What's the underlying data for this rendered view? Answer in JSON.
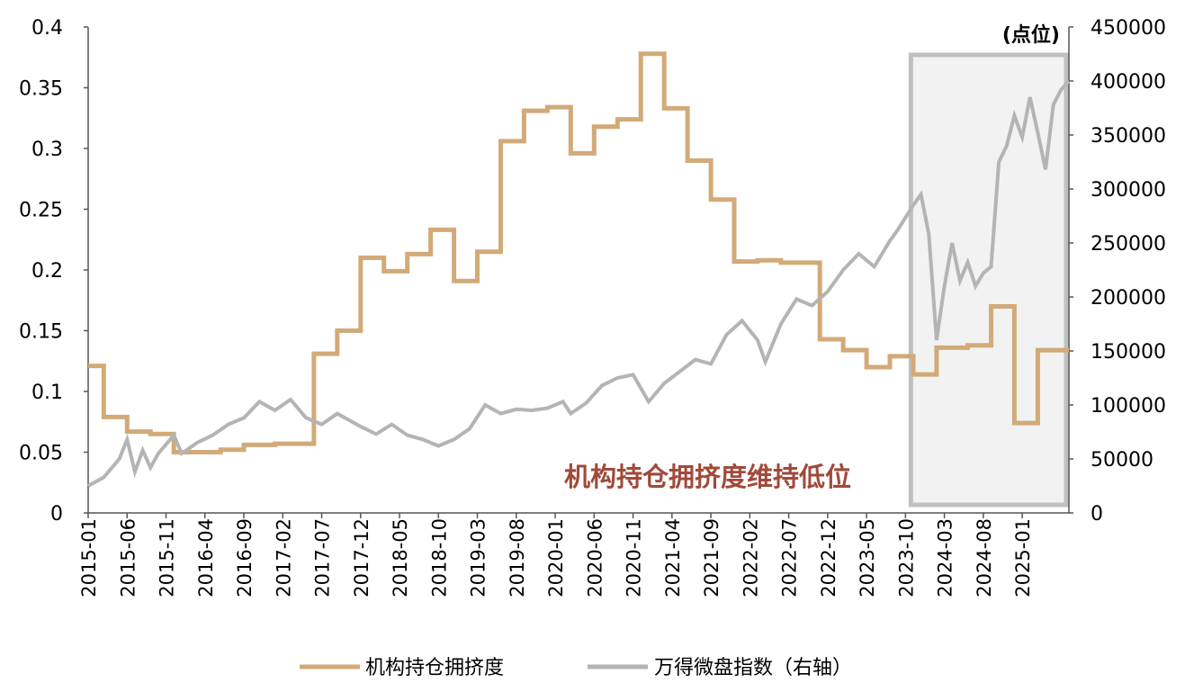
{
  "chart_data": {
    "type": "line",
    "y_left": {
      "ylim": [
        0,
        0.4
      ],
      "ticks": [
        "0",
        "0.05",
        "0.1",
        "0.15",
        "0.2",
        "0.25",
        "0.3",
        "0.35",
        "0.4"
      ]
    },
    "y_right": {
      "label": "(点位)",
      "ylim": [
        0,
        450000
      ],
      "ticks": [
        "0",
        "50000",
        "100000",
        "150000",
        "200000",
        "250000",
        "300000",
        "350000",
        "400000",
        "450000"
      ]
    },
    "x_range": [
      "2015-01",
      "2025-07"
    ],
    "x_ticks": [
      "2015-01",
      "2015-06",
      "2015-11",
      "2016-04",
      "2016-09",
      "2017-02",
      "2017-07",
      "2017-12",
      "2018-05",
      "2018-10",
      "2019-03",
      "2019-08",
      "2020-01",
      "2020-06",
      "2020-11",
      "2021-04",
      "2021-09",
      "2022-02",
      "2022-07",
      "2022-12",
      "2023-05",
      "2023-10",
      "2024-03",
      "2024-08",
      "2025-01"
    ],
    "annotation": "机构持仓拥挤度维持低位",
    "highlight": {
      "from": "2023-10",
      "to": "2025-07"
    },
    "legend_position": "bottom",
    "series": [
      {
        "name": "机构持仓拥挤度",
        "axis": "left",
        "color": "#d2aa78",
        "step": true,
        "points": [
          [
            "2015-01",
            0.121
          ],
          [
            "2015-03",
            0.079
          ],
          [
            "2015-06",
            0.067
          ],
          [
            "2015-09",
            0.065
          ],
          [
            "2015-12",
            0.05
          ],
          [
            "2016-06",
            0.052
          ],
          [
            "2016-09",
            0.056
          ],
          [
            "2017-01",
            0.057
          ],
          [
            "2017-06",
            0.131
          ],
          [
            "2017-09",
            0.15
          ],
          [
            "2017-12",
            0.21
          ],
          [
            "2018-03",
            0.199
          ],
          [
            "2018-06",
            0.213
          ],
          [
            "2018-09",
            0.233
          ],
          [
            "2018-12",
            0.191
          ],
          [
            "2019-03",
            0.215
          ],
          [
            "2019-06",
            0.306
          ],
          [
            "2019-09",
            0.331
          ],
          [
            "2019-12",
            0.334
          ],
          [
            "2020-03",
            0.296
          ],
          [
            "2020-06",
            0.318
          ],
          [
            "2020-09",
            0.324
          ],
          [
            "2020-12",
            0.378
          ],
          [
            "2021-03",
            0.333
          ],
          [
            "2021-06",
            0.29
          ],
          [
            "2021-09",
            0.258
          ],
          [
            "2021-12",
            0.207
          ],
          [
            "2022-03",
            0.208
          ],
          [
            "2022-06",
            0.206
          ],
          [
            "2022-11",
            0.143
          ],
          [
            "2023-02",
            0.134
          ],
          [
            "2023-05",
            0.12
          ],
          [
            "2023-08",
            0.129
          ],
          [
            "2023-11",
            0.114
          ],
          [
            "2024-02",
            0.136
          ],
          [
            "2024-06",
            0.138
          ],
          [
            "2024-09",
            0.17
          ],
          [
            "2024-12",
            0.074
          ],
          [
            "2025-03",
            0.134
          ],
          [
            "2025-07",
            0.134
          ]
        ]
      },
      {
        "name": "万得微盘指数（右轴）",
        "axis": "right",
        "color": "#b4b4b4",
        "points": [
          [
            "2015-01",
            25000
          ],
          [
            "2015-03",
            33000
          ],
          [
            "2015-05",
            50000
          ],
          [
            "2015-06",
            68000
          ],
          [
            "2015-07",
            38000
          ],
          [
            "2015-08",
            58000
          ],
          [
            "2015-09",
            42000
          ],
          [
            "2015-10",
            55000
          ],
          [
            "2015-12",
            72000
          ],
          [
            "2016-01",
            55000
          ],
          [
            "2016-03",
            65000
          ],
          [
            "2016-05",
            72000
          ],
          [
            "2016-07",
            82000
          ],
          [
            "2016-09",
            88000
          ],
          [
            "2016-11",
            103000
          ],
          [
            "2017-01",
            95000
          ],
          [
            "2017-03",
            105000
          ],
          [
            "2017-05",
            88000
          ],
          [
            "2017-07",
            82000
          ],
          [
            "2017-09",
            92000
          ],
          [
            "2017-12",
            80000
          ],
          [
            "2018-02",
            73000
          ],
          [
            "2018-04",
            82000
          ],
          [
            "2018-06",
            72000
          ],
          [
            "2018-08",
            68000
          ],
          [
            "2018-10",
            62000
          ],
          [
            "2018-12",
            68000
          ],
          [
            "2019-02",
            78000
          ],
          [
            "2019-04",
            100000
          ],
          [
            "2019-06",
            92000
          ],
          [
            "2019-08",
            96000
          ],
          [
            "2019-10",
            95000
          ],
          [
            "2019-12",
            97000
          ],
          [
            "2020-02",
            103000
          ],
          [
            "2020-03",
            92000
          ],
          [
            "2020-05",
            102000
          ],
          [
            "2020-07",
            118000
          ],
          [
            "2020-09",
            125000
          ],
          [
            "2020-11",
            128000
          ],
          [
            "2021-01",
            103000
          ],
          [
            "2021-03",
            120000
          ],
          [
            "2021-05",
            131000
          ],
          [
            "2021-07",
            142000
          ],
          [
            "2021-09",
            138000
          ],
          [
            "2021-11",
            165000
          ],
          [
            "2022-01",
            178000
          ],
          [
            "2022-03",
            160000
          ],
          [
            "2022-04",
            140000
          ],
          [
            "2022-06",
            175000
          ],
          [
            "2022-08",
            198000
          ],
          [
            "2022-10",
            192000
          ],
          [
            "2022-12",
            205000
          ],
          [
            "2023-02",
            225000
          ],
          [
            "2023-04",
            240000
          ],
          [
            "2023-06",
            228000
          ],
          [
            "2023-08",
            252000
          ],
          [
            "2023-09",
            262000
          ],
          [
            "2023-11",
            285000
          ],
          [
            "2023-12",
            295000
          ],
          [
            "2024-01",
            258000
          ],
          [
            "2024-02",
            160000
          ],
          [
            "2024-03",
            210000
          ],
          [
            "2024-04",
            250000
          ],
          [
            "2024-05",
            215000
          ],
          [
            "2024-06",
            232000
          ],
          [
            "2024-07",
            210000
          ],
          [
            "2024-08",
            222000
          ],
          [
            "2024-09",
            228000
          ],
          [
            "2024-10",
            325000
          ],
          [
            "2024-11",
            340000
          ],
          [
            "2024-12",
            368000
          ],
          [
            "2025-01",
            348000
          ],
          [
            "2025-02",
            385000
          ],
          [
            "2025-03",
            352000
          ],
          [
            "2025-04",
            318000
          ],
          [
            "2025-05",
            378000
          ],
          [
            "2025-06",
            392000
          ],
          [
            "2025-07",
            400000
          ]
        ]
      }
    ]
  }
}
